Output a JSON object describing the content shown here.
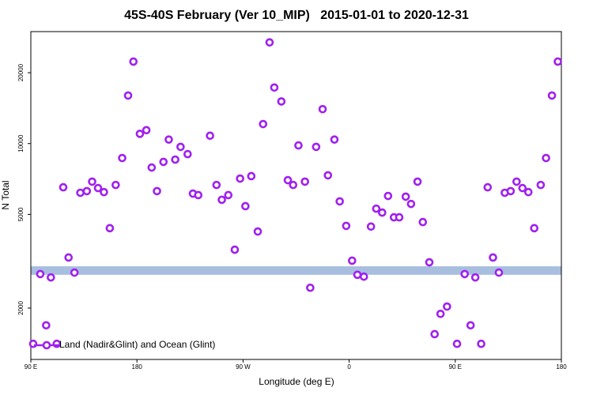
{
  "chart_data": {
    "type": "scatter",
    "title": "45S-40S February (Ver 10_MIP)   2015-01-01 to 2020-12-31",
    "x_label": "Longitude (deg E)",
    "y_label": "N Total",
    "xlim": [
      90,
      540
    ],
    "xticks": [
      {
        "value": 90,
        "label": "90 E"
      },
      180,
      {
        "value": 270,
        "label": "90 W"
      },
      {
        "value": 360,
        "label": "0"
      },
      {
        "value": 450,
        "label": "90 E"
      },
      {
        "value": 540,
        "label": "180"
      }
    ],
    "ylim": [
      1210,
      29900
    ],
    "log_y": true,
    "yticks": [
      2000,
      5000,
      10000,
      20000
    ],
    "band": [
      2770,
      3010
    ],
    "band_color": "#a7bedf",
    "legend": "lower left",
    "series": [
      {
        "name": "Land (Nadir&Glint) and Ocean (Glint)",
        "color": "#a020f0",
        "x": [
          92,
          98,
          103,
          107,
          112,
          117.5,
          122,
          127,
          132,
          137.5,
          142,
          147,
          152,
          157,
          162,
          167.5,
          172.5,
          177,
          182.5,
          188,
          192.5,
          197,
          202.5,
          207,
          212.5,
          217,
          223,
          227.5,
          232,
          242,
          247.5,
          252,
          257.5,
          263,
          267.5,
          272,
          277,
          282.5,
          287,
          292.5,
          296.5,
          302.5,
          308,
          312.5,
          317,
          322.5,
          327,
          332,
          337.5,
          342,
          347.5,
          352,
          357.5,
          362.5,
          367,
          372.5,
          378.5,
          383,
          388,
          393,
          398,
          402.5,
          408,
          412.5,
          418,
          422.5,
          428,
          432.5,
          437.5,
          443,
          451.5,
          458,
          463,
          467,
          472,
          477.5,
          482,
          487,
          492,
          497,
          502,
          507,
          512,
          517,
          522.5,
          527,
          532,
          537
        ],
        "values": [
          1410,
          2790,
          1690,
          2700,
          1410,
          6520,
          3280,
          2830,
          6180,
          6280,
          6890,
          6470,
          6220,
          4370,
          6670,
          8680,
          16000,
          22300,
          11000,
          11400,
          7910,
          6280,
          8360,
          10400,
          8550,
          9680,
          9020,
          6130,
          6040,
          10800,
          6670,
          5770,
          6040,
          3540,
          7100,
          5420,
          7270,
          4230,
          12100,
          26900,
          17300,
          15100,
          6990,
          6670,
          9820,
          6890,
          2440,
          9680,
          14000,
          7330,
          10400,
          5680,
          4470,
          3180,
          2770,
          2720,
          4440,
          5290,
          5090,
          5990,
          4860,
          4860,
          5950,
          5540,
          6890,
          4640,
          3130,
          1550,
          1890,
          2030,
          1410,
          2790,
          1690,
          2700,
          1410,
          6520,
          3280,
          2830,
          6180,
          6280,
          6890,
          6470,
          6220,
          4370,
          6670,
          8680,
          16000,
          22300
        ]
      }
    ]
  }
}
